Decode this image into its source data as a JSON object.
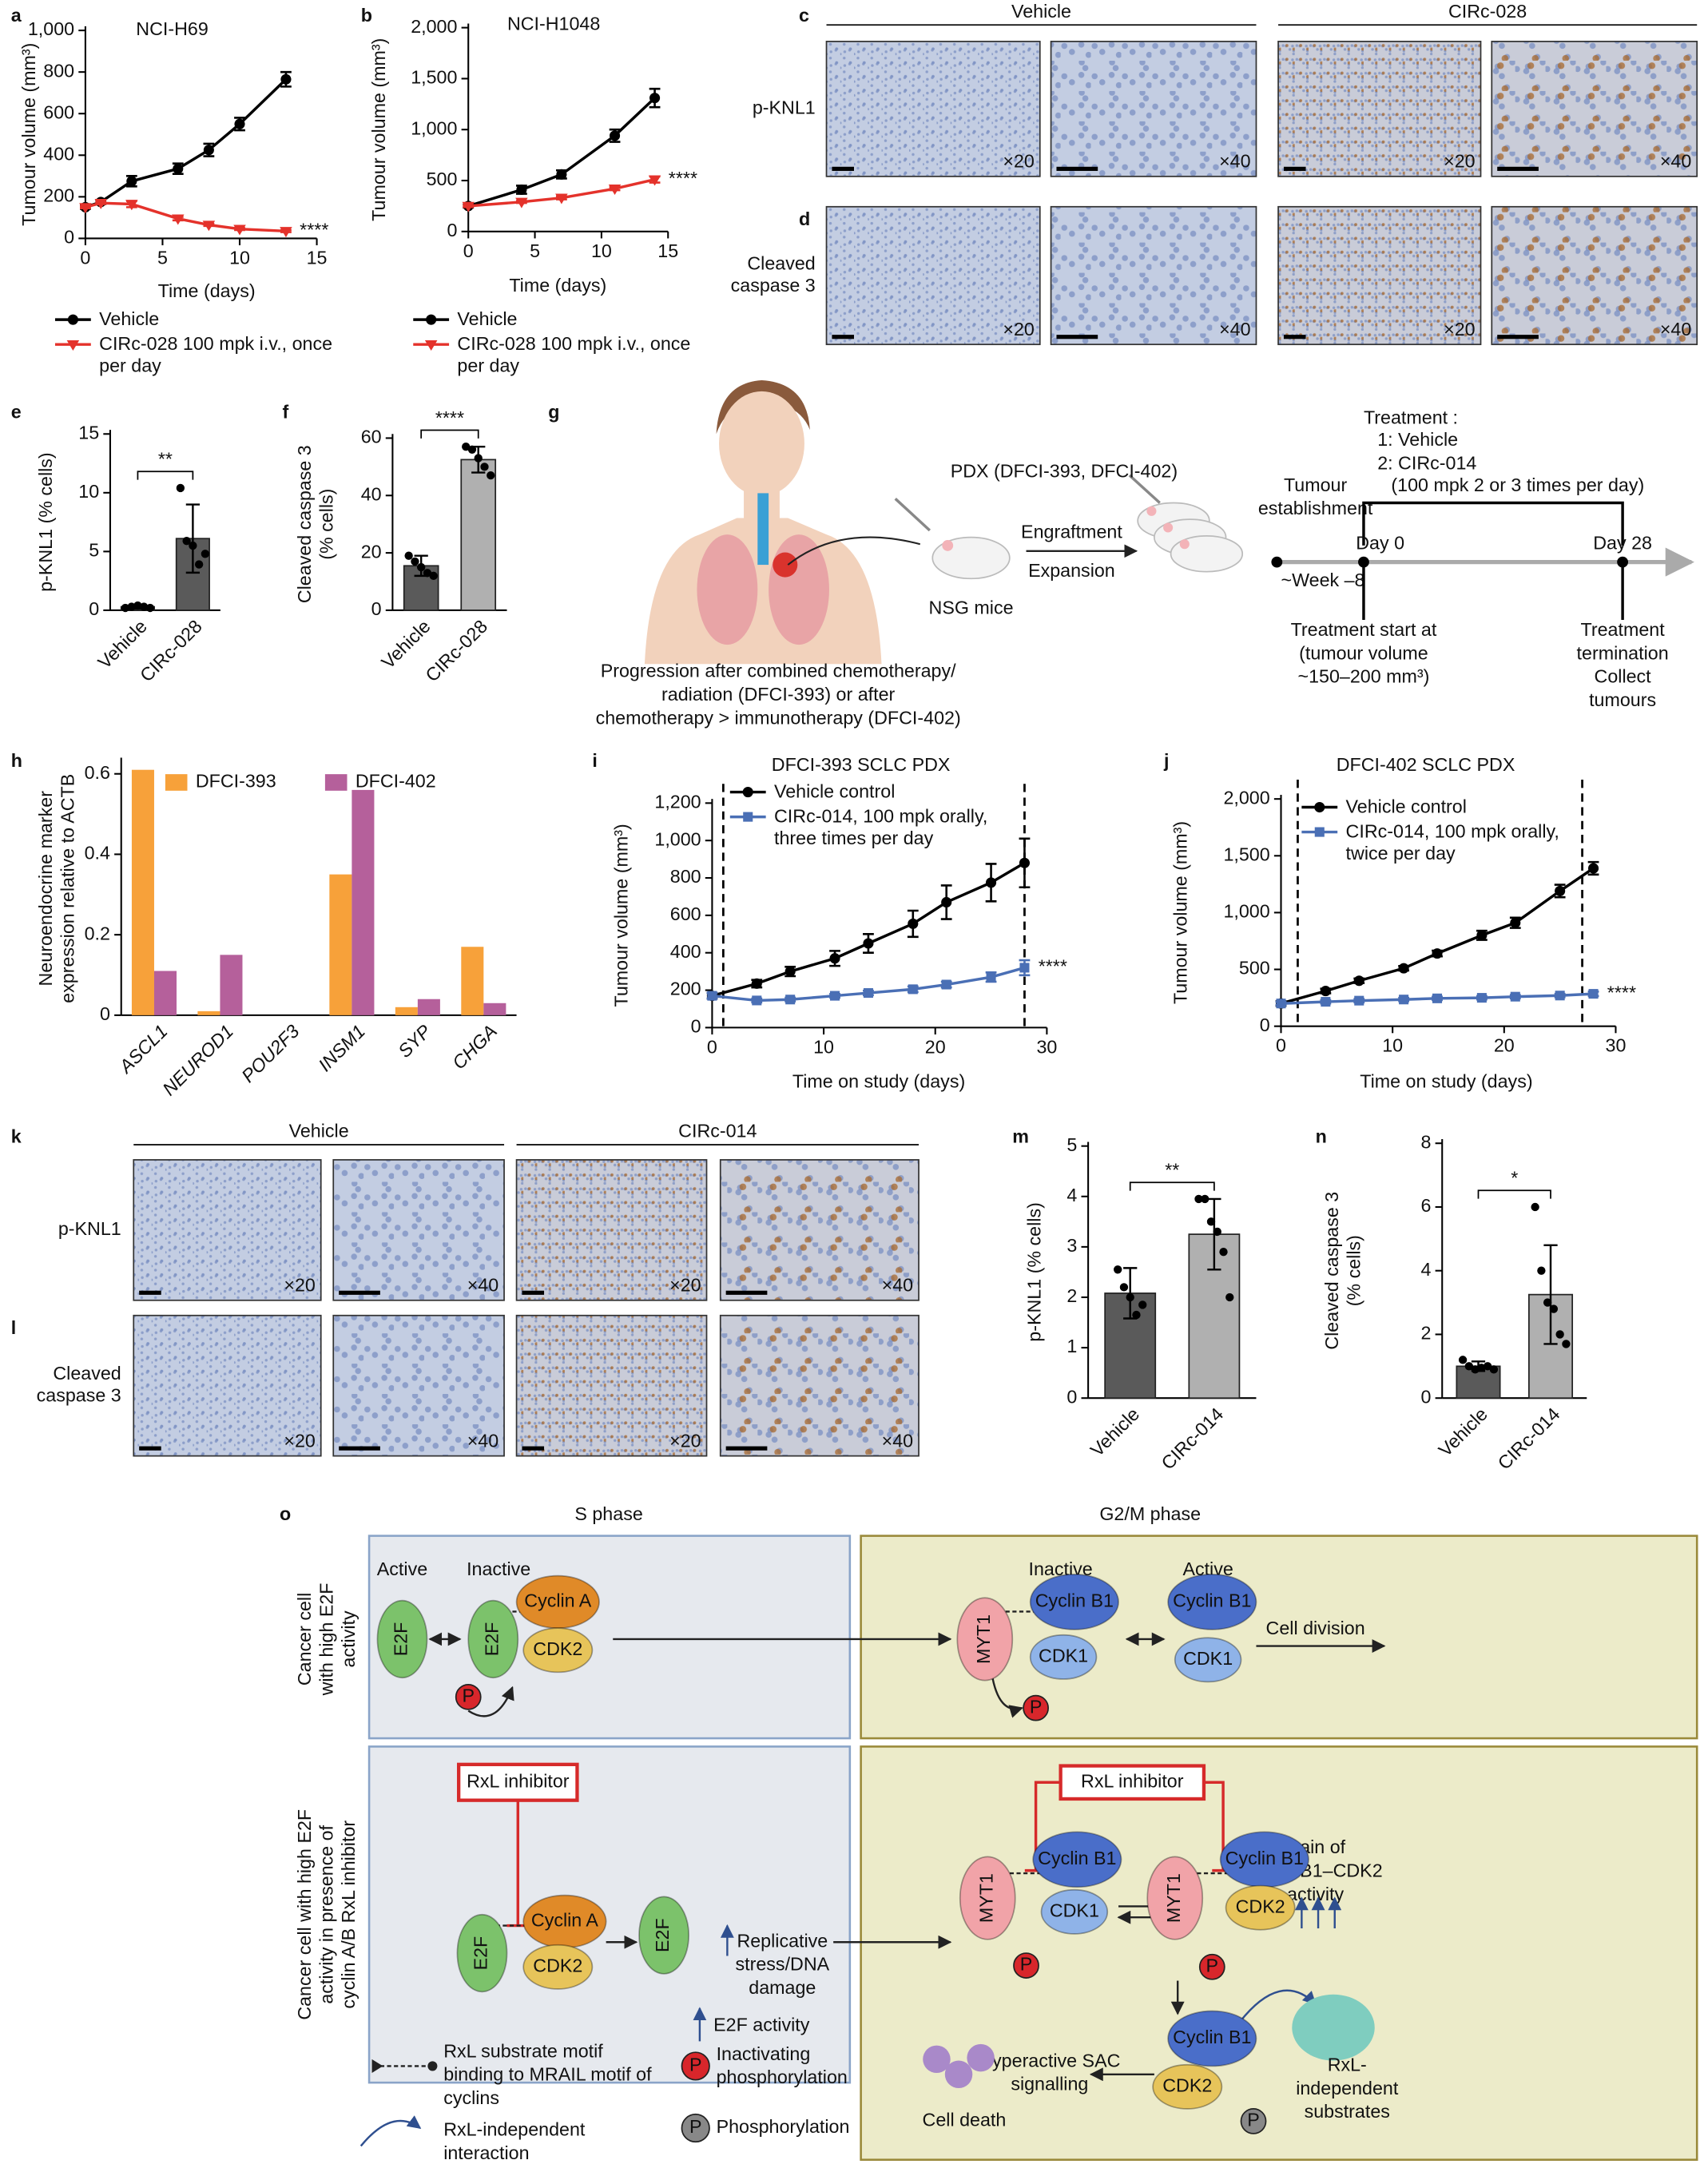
{
  "chart_data": [
    {
      "label": "a",
      "type": "line",
      "title": "NCI-H69",
      "xlabel": "Time (days)",
      "ylabel": [
        "Tumour volume (mm³)"
      ],
      "x": [
        0,
        1,
        3,
        6,
        8,
        10,
        13
      ],
      "xlim": [
        0,
        15
      ],
      "xticks": [
        0,
        5,
        10,
        15
      ],
      "ylim": [
        0,
        1000
      ],
      "yticks": [
        0,
        200,
        400,
        600,
        800,
        {
          "value": 1000,
          "label": "1,000"
        }
      ],
      "series": [
        {
          "name": "Vehicle",
          "color": "#000000",
          "marker": "circle",
          "values": [
            150,
            175,
            275,
            335,
            425,
            550,
            765
          ],
          "errors": [
            8,
            10,
            25,
            25,
            30,
            30,
            35
          ]
        },
        {
          "name": "CIRc-028 100 mpk i.v., once per day",
          "color": "#e4322b",
          "marker": "triangle-down",
          "values": [
            150,
            170,
            165,
            95,
            65,
            45,
            35
          ],
          "errors": [
            5,
            5,
            15,
            8,
            5,
            5,
            5
          ]
        }
      ],
      "annotation": "****"
    },
    {
      "label": "b",
      "type": "line",
      "title": "NCI-H1048",
      "xlabel": "Time (days)",
      "ylabel": [
        "Tumour volume (mm³)"
      ],
      "x": [
        0,
        4,
        7,
        11,
        14
      ],
      "xlim": [
        0,
        15
      ],
      "xticks": [
        0,
        5,
        10,
        15
      ],
      "ylim": [
        0,
        2000
      ],
      "yticks": [
        0,
        500,
        {
          "value": 1000,
          "label": "1,000"
        },
        {
          "value": 1500,
          "label": "1,500"
        },
        {
          "value": 2000,
          "label": "2,000"
        }
      ],
      "series": [
        {
          "name": "Vehicle",
          "color": "#000000",
          "marker": "circle",
          "values": [
            250,
            410,
            560,
            940,
            1310
          ],
          "errors": [
            15,
            40,
            40,
            60,
            90
          ]
        },
        {
          "name": "CIRc-028 100 mpk i.v., once per day",
          "color": "#e4322b",
          "marker": "triangle-down",
          "values": [
            250,
            290,
            330,
            420,
            510
          ],
          "errors": [
            10,
            10,
            15,
            15,
            30
          ]
        }
      ],
      "annotation": "****"
    },
    {
      "label": "e",
      "type": "bar",
      "ylabel": [
        "p-KNL1 (% cells)"
      ],
      "categories": [
        "Vehicle",
        "CIRc-028"
      ],
      "values": [
        0.3,
        6.1
      ],
      "errors": [
        0.15,
        2.9
      ],
      "points": [
        [
          0.2,
          0.3,
          0.4,
          0.3,
          0.2
        ],
        [
          10.4,
          5.9,
          5.5,
          3.9,
          4.8
        ]
      ],
      "colors": [
        "#5a5a5a",
        "#5a5a5a"
      ],
      "ylim": [
        0,
        15
      ],
      "yticks": [
        0,
        5,
        10,
        15
      ],
      "annotation": "**"
    },
    {
      "label": "f",
      "type": "bar",
      "ylabel": [
        "Cleaved caspase 3",
        "(% cells)"
      ],
      "categories": [
        "Vehicle",
        "CIRc-028"
      ],
      "values": [
        15.5,
        52.5
      ],
      "errors": [
        3.5,
        4.5
      ],
      "points": [
        [
          19,
          17,
          15,
          13,
          12
        ],
        [
          57,
          56,
          53,
          50,
          47
        ]
      ],
      "colors": [
        "#5a5a5a",
        "#b0b0b0"
      ],
      "ylim": [
        0,
        60
      ],
      "yticks": [
        0,
        20,
        40,
        60
      ],
      "annotation": "****"
    },
    {
      "label": "h",
      "type": "grouped_bar",
      "ylabel": [
        "Neuroendocrine marker",
        "expression relative to ACTB"
      ],
      "categories": [
        "ASCL1",
        "NEUROD1",
        "POU2F3",
        "INSM1",
        "SYP",
        "CHGA"
      ],
      "series": [
        {
          "name": "DFCI-393",
          "color": "#f7a13a",
          "values": [
            0.61,
            0.01,
            0,
            0.35,
            0.02,
            0.17
          ]
        },
        {
          "name": "DFCI-402",
          "color": "#b5609b",
          "values": [
            0.11,
            0.15,
            0,
            0.56,
            0.04,
            0.03
          ]
        }
      ],
      "ylim": [
        0,
        0.63
      ],
      "yticks": [
        0,
        0.2,
        0.4,
        0.6
      ]
    },
    {
      "label": "i",
      "type": "line",
      "title": "DFCI-393 SCLC PDX",
      "xlabel": "Time on study (days)",
      "ylabel": [
        "Tumour volume (mm³)"
      ],
      "x": [
        0,
        4,
        7,
        11,
        14,
        18,
        21,
        25,
        28
      ],
      "xlim": [
        0,
        30
      ],
      "xticks": [
        0,
        10,
        20,
        30
      ],
      "ylim": [
        0,
        1200
      ],
      "yticks": [
        0,
        200,
        400,
        600,
        800,
        {
          "value": 1000,
          "label": "1,000"
        },
        {
          "value": 1200,
          "label": "1,200"
        }
      ],
      "dashed_lines": [
        1,
        28
      ],
      "series": [
        {
          "name": "Vehicle control",
          "color": "#000000",
          "marker": "circle",
          "values": [
            170,
            235,
            300,
            370,
            450,
            555,
            670,
            775,
            880
          ],
          "errors": [
            15,
            20,
            25,
            40,
            50,
            70,
            90,
            100,
            130
          ]
        },
        {
          "name": "CIRc-014, 100 mpk orally, three times per day",
          "color": "#4a6fb5",
          "marker": "square",
          "values": [
            170,
            145,
            150,
            170,
            185,
            205,
            230,
            270,
            320
          ],
          "errors": [
            15,
            10,
            10,
            10,
            12,
            15,
            15,
            25,
            40
          ]
        }
      ],
      "annotation": "****"
    },
    {
      "label": "j",
      "type": "line",
      "title": "DFCI-402 SCLC PDX",
      "xlabel": "Time on study (days)",
      "ylabel": [
        "Tumour volume (mm³)"
      ],
      "x": [
        0,
        4,
        7,
        11,
        14,
        18,
        21,
        25,
        28
      ],
      "xlim": [
        0,
        30
      ],
      "xticks": [
        0,
        10,
        20,
        30
      ],
      "ylim": [
        0,
        2000
      ],
      "yticks": [
        0,
        500,
        {
          "value": 1000,
          "label": "1,000"
        },
        {
          "value": 1500,
          "label": "1,500"
        },
        {
          "value": 2000,
          "label": "2,000"
        }
      ],
      "dashed_lines": [
        1.5,
        27
      ],
      "series": [
        {
          "name": "Vehicle control",
          "color": "#000000",
          "marker": "circle",
          "values": [
            200,
            310,
            400,
            510,
            640,
            800,
            910,
            1190,
            1390
          ],
          "errors": [
            20,
            20,
            20,
            20,
            25,
            40,
            45,
            55,
            55
          ]
        },
        {
          "name": "CIRc-014, 100 mpk orally, twice per day",
          "color": "#4a6fb5",
          "marker": "square",
          "values": [
            200,
            215,
            225,
            235,
            245,
            250,
            260,
            270,
            285
          ],
          "errors": [
            15,
            15,
            15,
            15,
            15,
            15,
            15,
            15,
            20
          ]
        }
      ],
      "annotation": "****"
    },
    {
      "label": "m",
      "type": "bar",
      "ylabel": [
        "p-KNL1 (% cells)"
      ],
      "categories": [
        "Vehicle",
        "CIRc-014"
      ],
      "values": [
        2.08,
        3.25
      ],
      "errors": [
        0.5,
        0.7
      ],
      "points": [
        [
          2.55,
          2.2,
          2.0,
          1.65,
          1.85
        ],
        [
          3.95,
          3.95,
          3.5,
          3.3,
          2.9,
          2.0
        ]
      ],
      "colors": [
        "#5a5a5a",
        "#b0b0b0"
      ],
      "ylim": [
        0,
        5
      ],
      "yticks": [
        0,
        1,
        2,
        3,
        4,
        5
      ],
      "annotation": "**"
    },
    {
      "label": "n",
      "type": "bar",
      "ylabel": [
        "Cleaved caspase 3",
        "(% cells)"
      ],
      "categories": [
        "Vehicle",
        "CIRc-014"
      ],
      "values": [
        1.0,
        3.25
      ],
      "errors": [
        0.15,
        1.55
      ],
      "points": [
        [
          1.2,
          1.0,
          0.9,
          0.95,
          1.0,
          0.9
        ],
        [
          6.0,
          4.0,
          3.0,
          2.8,
          2.0,
          1.7
        ]
      ],
      "colors": [
        "#5a5a5a",
        "#b0b0b0"
      ],
      "ylim": [
        0,
        8
      ],
      "yticks": [
        0,
        2,
        4,
        6,
        8
      ],
      "annotation": "*"
    }
  ],
  "ihc": [
    {
      "label": "c",
      "groups": [
        "Vehicle",
        "CIRc-028"
      ],
      "row": [
        "p-KNL1"
      ],
      "magnifications": [
        "×20",
        "×40",
        "×20",
        "×40"
      ]
    },
    {
      "label": "d",
      "row": [
        "Cleaved",
        "caspase 3"
      ],
      "magnifications": [
        "×20",
        "×40",
        "×20",
        "×40"
      ]
    },
    {
      "label": "k",
      "groups": [
        "Vehicle",
        "CIRc-014"
      ],
      "row": [
        "p-KNL1"
      ],
      "magnifications": [
        "×20",
        "×40",
        "×20",
        "×40"
      ]
    },
    {
      "label": "l",
      "row": [
        "Cleaved",
        "caspase 3"
      ],
      "magnifications": [
        "×20",
        "×40",
        "×20",
        "×40"
      ]
    }
  ],
  "diagram_g": {
    "label": "g",
    "pdx": "PDX (DFCI-393, DFCI-402)",
    "mice": "NSG mice",
    "engraftment": "Engraftment",
    "expansion": "Expansion",
    "establishment": [
      "Tumour",
      "establishment"
    ],
    "week": "~Week –8",
    "day0": "Day 0",
    "day28": "Day 28",
    "treatment": [
      "Treatment :",
      "1: Vehicle",
      "2: CIRc-014",
      "(100 mpk 2 or 3 times per day)"
    ],
    "start": [
      "Treatment start at",
      "(tumour volume",
      "~150–200 mm³)"
    ],
    "termination": [
      "Treatment",
      "termination",
      "Collect",
      "tumours"
    ],
    "progression": [
      "Progression after combined chemotherapy/",
      "radiation (DFCI-393) or after",
      "chemotherapy > immunotherapy (DFCI-402)"
    ]
  },
  "diagram_o": {
    "label": "o",
    "phases": [
      "S phase",
      "G2/M phase"
    ],
    "states": [
      "Active",
      "Inactive",
      "Inactive",
      "Active"
    ],
    "row_labels": [
      [
        "Cancer cell",
        "with high E2F",
        "activity"
      ],
      [
        "Cancer cell with high E2F",
        "activity in presence of",
        "cyclin A/B RxL inhibitor"
      ]
    ],
    "cell_division": "Cell division",
    "inhibitor": [
      "RxL inhibitor",
      "RxL inhibitor"
    ],
    "gain": [
      "Gain of",
      "cyclin B1–CDK2",
      "activity"
    ],
    "stress": [
      "Replicative",
      "stress/DNA",
      "damage"
    ],
    "e2f_activity": "E2F activity",
    "sac": [
      "Hyperactive SAC",
      "signalling"
    ],
    "death": "Cell death",
    "substrates": [
      "RxL-",
      "independent",
      "substrates"
    ],
    "proteins": [
      "E2F",
      "E2F",
      "Cyclin A",
      "CDK2",
      "P",
      "MYT1",
      "Cyclin B1",
      "CDK1",
      "P",
      "Cyclin B1",
      "CDK1",
      "E2F",
      "Cyclin A",
      "CDK2",
      "E2F",
      "MYT1",
      "Cyclin B1",
      "CDK1",
      "P",
      "MYT1",
      "Cyclin B1",
      "CDK2",
      "P",
      "Cyclin B1",
      "CDK2",
      "P"
    ],
    "legend": {
      "motif": [
        "RxL substrate motif",
        "binding to MRAIL motif of",
        "cyclins"
      ],
      "interaction": [
        "RxL-independent",
        "interaction"
      ],
      "inactivating": [
        "Inactivating",
        "phosphorylation"
      ],
      "phosphorylation": "Phosphorylation",
      "p_icons": [
        "P",
        "P"
      ]
    }
  }
}
